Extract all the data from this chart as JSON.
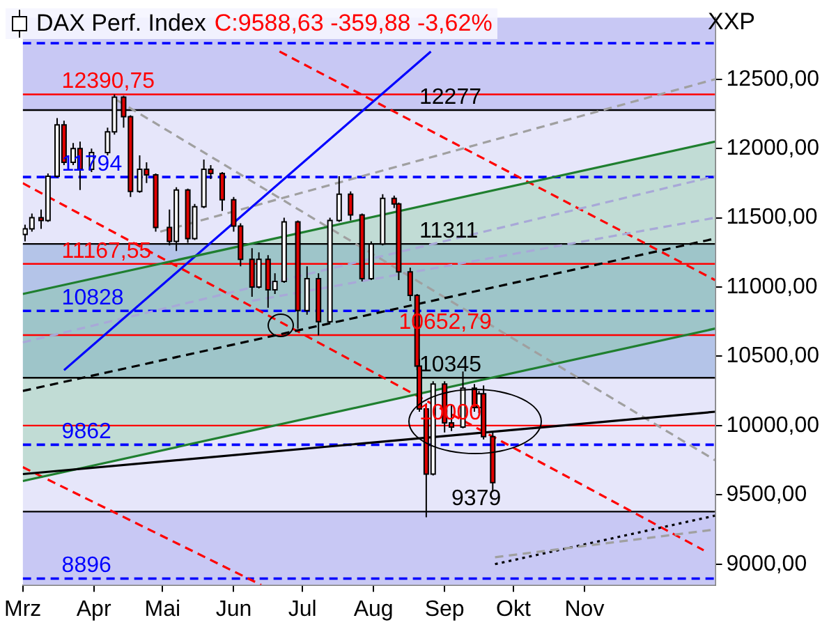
{
  "chart_data": {
    "type": "line",
    "title": "DAX Perf. Index",
    "subtitle": "C:9588,63 -359,88 -3,62%",
    "ylabel": "XXP",
    "xlim": [
      "--03-01",
      "--12-28"
    ],
    "xticks": [
      {
        "value": "--03-01",
        "label": "Mrz"
      },
      {
        "value": "--04-01",
        "label": "Apr"
      },
      {
        "value": "--05-01",
        "label": "Mai"
      },
      {
        "value": "--06-01",
        "label": "Jun"
      },
      {
        "value": "--07-01",
        "label": "Jul"
      },
      {
        "value": "--08-01",
        "label": "Aug"
      },
      {
        "value": "--09-01",
        "label": "Sep"
      },
      {
        "value": "--10-01",
        "label": "Okt"
      },
      {
        "value": "--11-01",
        "label": "Nov"
      }
    ],
    "ylim": [
      8850,
      12945
    ],
    "yticks": [
      {
        "value": 9000,
        "label": "9000,00"
      },
      {
        "value": 9500,
        "label": "9500,00"
      },
      {
        "value": 10000,
        "label": "10000,00"
      },
      {
        "value": 10500,
        "label": "10500,00"
      },
      {
        "value": 11000,
        "label": "11000,00"
      },
      {
        "value": 11500,
        "label": "11500,00"
      },
      {
        "value": 12000,
        "label": "12000,00"
      },
      {
        "value": 12500,
        "label": "12500,00"
      }
    ],
    "marker": "none",
    "series": [
      {
        "type": "candlestick",
        "x": [
          "--03-02",
          "--03-05",
          "--03-09",
          "--03-12",
          "--03-16",
          "--03-19",
          "--03-23",
          "--03-26",
          "--03-31",
          "--04-07",
          "--04-10",
          "--04-14",
          "--04-17",
          "--04-21",
          "--04-24",
          "--04-28",
          "--05-04",
          "--05-07",
          "--05-12",
          "--05-15",
          "--05-19",
          "--05-22",
          "--05-27",
          "--06-01",
          "--06-04",
          "--06-09",
          "--06-12",
          "--06-16",
          "--06-19",
          "--06-23",
          "--06-29",
          "--07-03",
          "--07-08",
          "--07-13",
          "--07-17",
          "--07-22",
          "--07-27",
          "--07-31",
          "--08-05",
          "--08-10",
          "--08-12",
          "--08-17",
          "--08-20",
          "--08-21",
          "--08-24",
          "--08-27",
          "--09-01",
          "--09-04",
          "--09-09",
          "--09-14",
          "--09-16",
          "--09-18",
          "--09-22"
        ],
        "ohlc": [
          [
            11380,
            11450,
            11330,
            11420
          ],
          [
            11420,
            11530,
            11400,
            11500
          ],
          [
            11500,
            11560,
            11420,
            11480
          ],
          [
            11480,
            11820,
            11470,
            11800
          ],
          [
            11800,
            12220,
            11790,
            12170
          ],
          [
            12170,
            12200,
            11880,
            11900
          ],
          [
            11900,
            12040,
            11880,
            12000
          ],
          [
            12000,
            12050,
            11700,
            11850
          ],
          [
            11850,
            12000,
            11830,
            11970
          ],
          [
            11970,
            12150,
            11950,
            12120
          ],
          [
            12120,
            12390.75,
            12100,
            12370
          ],
          [
            12370,
            12380,
            12150,
            12230
          ],
          [
            12230,
            12240,
            11650,
            11690
          ],
          [
            11690,
            11950,
            11680,
            11850
          ],
          [
            11850,
            11900,
            11750,
            11810
          ],
          [
            11810,
            11820,
            11400,
            11430
          ],
          [
            11430,
            11560,
            11300,
            11330
          ],
          [
            11330,
            11720,
            11260,
            11700
          ],
          [
            11700,
            11710,
            11320,
            11350
          ],
          [
            11350,
            11600,
            11340,
            11580
          ],
          [
            11580,
            11920,
            11570,
            11850
          ],
          [
            11850,
            11880,
            11780,
            11820
          ],
          [
            11820,
            11830,
            11550,
            11630
          ],
          [
            11630,
            11650,
            11400,
            11440
          ],
          [
            11440,
            11460,
            11150,
            11200
          ],
          [
            11200,
            11280,
            10930,
            11000
          ],
          [
            11000,
            11250,
            10990,
            11200
          ],
          [
            11200,
            11230,
            10850,
            10980
          ],
          [
            10980,
            11100,
            10950,
            11040
          ],
          [
            11040,
            11500,
            11030,
            11470
          ],
          [
            11470,
            11480,
            10700,
            10830
          ],
          [
            10830,
            11150,
            10800,
            11060
          ],
          [
            11060,
            11100,
            10650,
            10750
          ],
          [
            10750,
            11500,
            10740,
            11480
          ],
          [
            11480,
            11800,
            11470,
            11670
          ],
          [
            11670,
            11690,
            11480,
            11520
          ],
          [
            11520,
            11530,
            11040,
            11060
          ],
          [
            11060,
            11330,
            11050,
            11310
          ],
          [
            11310,
            11670,
            11300,
            11640
          ],
          [
            11640,
            11660,
            11570,
            11600
          ],
          [
            11600,
            11610,
            11050,
            11110
          ],
          [
            11110,
            11140,
            10900,
            10940
          ],
          [
            10940,
            10950,
            10400,
            10430
          ],
          [
            10430,
            10480,
            10100,
            10120
          ],
          [
            10120,
            10160,
            9338,
            9650
          ],
          [
            9650,
            10320,
            9640,
            10300
          ],
          [
            10300,
            10320,
            9950,
            10020
          ],
          [
            10020,
            10150,
            9960,
            9990
          ],
          [
            9990,
            10390,
            9980,
            10270
          ],
          [
            10270,
            10300,
            10100,
            10130
          ],
          [
            10130,
            10250,
            10090,
            10230
          ],
          [
            10230,
            10290,
            9900,
            9920
          ],
          [
            9920,
            9960,
            9520,
            9588.63
          ]
        ]
      },
      {
        "color": "#000000",
        "line_style": "solid",
        "x": [
          "--03-01",
          "--12-28"
        ],
        "values": [
          9650,
          10100
        ]
      },
      {
        "color": "#1f7f2f",
        "line_style": "solid",
        "x": [
          "--03-01",
          "--12-28"
        ],
        "values": [
          10950,
          12050
        ]
      },
      {
        "color": "#1f7f2f",
        "line_style": "solid",
        "x": [
          "--03-01",
          "--12-28"
        ],
        "values": [
          9600,
          10700
        ]
      },
      {
        "color": "#000000",
        "line_style": "dashed",
        "x": [
          "--03-01",
          "--12-28"
        ],
        "values": [
          10250,
          11350
        ],
        "lower": [
          9600,
          10700
        ],
        "upper": [
          10950,
          12050
        ]
      },
      {
        "color": "#0000ff",
        "line_style": "solid",
        "x": [
          "--03-19",
          "--08-26"
        ],
        "values": [
          10400,
          12700
        ]
      },
      {
        "color": "#a0a0a0",
        "line_style": "dashed",
        "x": [
          "--04-11",
          "--12-28"
        ],
        "values": [
          12350,
          9750
        ]
      },
      {
        "color": "#a0a0a0",
        "line_style": "dashed",
        "x": [
          "--04-30",
          "--12-28"
        ],
        "values": [
          11400,
          12500
        ]
      },
      {
        "color": "#a8a8d8",
        "line_style": "dashed",
        "x": [
          "--03-01",
          "--12-28"
        ],
        "values": [
          10600,
          11800
        ]
      },
      {
        "color": "#a8a8d8",
        "line_style": "dashed",
        "x": [
          "--06-09",
          "--12-28"
        ],
        "values": [
          10900,
          11500
        ]
      },
      {
        "color": "#a0a0a0",
        "line_style": "dashed",
        "x": [
          "--09-23",
          "--12-28"
        ],
        "values": [
          9050,
          9250
        ]
      },
      {
        "color": "#000000",
        "line_style": "dotted",
        "x": [
          "--09-23",
          "--12-28"
        ],
        "values": [
          9000,
          9350
        ]
      },
      {
        "color": "#ff0000",
        "line_style": "dashed",
        "x": [
          "--03-01",
          "--12-23"
        ],
        "values": [
          11750,
          9100
        ]
      },
      {
        "color": "#ff0000",
        "line_style": "dashed",
        "x": [
          "--06-21",
          "--12-28"
        ],
        "values": [
          12700,
          11050
        ]
      },
      {
        "color": "#ff0000",
        "line_style": "dashed",
        "x": [
          "--03-01",
          "--06-13"
        ],
        "values": [
          9700,
          8850
        ]
      }
    ],
    "bands": [
      {
        "axis": "y",
        "from": 12277,
        "to": 12945,
        "color": "#c8c8f4"
      },
      {
        "axis": "y",
        "from": 10345,
        "to": 11311,
        "color": "#b4c4e8"
      },
      {
        "axis": "y",
        "from": 8850,
        "to": 9379,
        "color": "#c8c8f4"
      }
    ],
    "ref_lines": [
      {
        "axis": "y",
        "value": 12760,
        "color": "#0000ff",
        "line_style": "dashed"
      },
      {
        "axis": "y",
        "value": 12390.75,
        "color": "#ff0000",
        "line_style": "solid"
      },
      {
        "axis": "y",
        "value": 12277,
        "color": "#000000",
        "line_style": "solid"
      },
      {
        "axis": "y",
        "value": 11794,
        "color": "#0000ff",
        "line_style": "dashed"
      },
      {
        "axis": "y",
        "value": 11311,
        "color": "#000000",
        "line_style": "solid"
      },
      {
        "axis": "y",
        "value": 11167.55,
        "color": "#ff0000",
        "line_style": "solid"
      },
      {
        "axis": "y",
        "value": 10828,
        "color": "#0000ff",
        "line_style": "dashed"
      },
      {
        "axis": "y",
        "value": 10652.79,
        "color": "#ff0000",
        "line_style": "solid"
      },
      {
        "axis": "y",
        "value": 10345,
        "color": "#000000",
        "line_style": "solid"
      },
      {
        "axis": "y",
        "value": 10000,
        "color": "#ff0000",
        "line_style": "solid"
      },
      {
        "axis": "y",
        "value": 9862,
        "color": "#0000ff",
        "line_style": "dashed"
      },
      {
        "axis": "y",
        "value": 9379,
        "color": "#000000",
        "line_style": "solid"
      },
      {
        "axis": "y",
        "value": 8896,
        "color": "#0000ff",
        "line_style": "dashed"
      }
    ],
    "annotations": [
      {
        "text": "12390,75",
        "x": "--03-18",
        "y": 12390.75
      },
      {
        "text": "12277",
        "x": "--08-21",
        "y": 12277
      },
      {
        "text": "11794",
        "x": "--03-18",
        "y": 11794
      },
      {
        "text": "11311",
        "x": "--08-21",
        "y": 11311
      },
      {
        "text": "11167,55",
        "x": "--03-18",
        "y": 11167.55
      },
      {
        "text": "10828",
        "x": "--03-18",
        "y": 10828
      },
      {
        "text": "10652,79",
        "x": "--08-12",
        "y": 10652.79
      },
      {
        "text": "10345",
        "x": "--08-21",
        "y": 10345
      },
      {
        "text": "10000",
        "x": "--08-21",
        "y": 10000
      },
      {
        "text": "9862",
        "x": "--03-18",
        "y": 9862
      },
      {
        "text": "9379",
        "x": "--09-04",
        "y": 9379
      },
      {
        "text": "8896",
        "x": "--03-18",
        "y": 8896
      }
    ]
  }
}
